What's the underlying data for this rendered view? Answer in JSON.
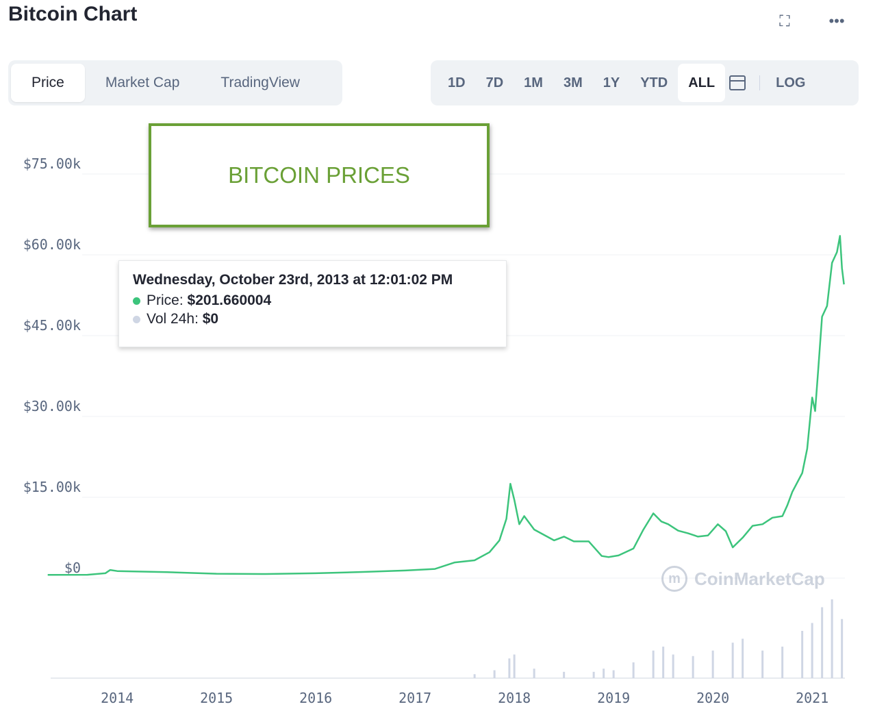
{
  "header": {
    "title": "Bitcoin Chart",
    "icons": [
      "fullscreen-icon",
      "more-icon"
    ]
  },
  "tabs": [
    {
      "label": "Price",
      "active": true
    },
    {
      "label": "Market Cap",
      "active": false
    },
    {
      "label": "TradingView",
      "active": false
    }
  ],
  "ranges": [
    {
      "label": "1D",
      "active": false
    },
    {
      "label": "7D",
      "active": false
    },
    {
      "label": "1M",
      "active": false
    },
    {
      "label": "3M",
      "active": false
    },
    {
      "label": "1Y",
      "active": false
    },
    {
      "label": "YTD",
      "active": false
    },
    {
      "label": "ALL",
      "active": true
    }
  ],
  "log_label": "LOG",
  "banner": {
    "text": "BITCOIN PRICES"
  },
  "tooltip": {
    "date": "Wednesday, October 23rd, 2013 at 12:01:02 PM",
    "price_label": "Price:",
    "price_value": "$201.660004",
    "vol_label": "Vol 24h:",
    "vol_value": "$0"
  },
  "watermark": "CoinMarketCap",
  "colors": {
    "line": "#3cc47c",
    "volume": "#cfd6e4",
    "banner": "#6aa036",
    "dot_price": "#3cc47c",
    "dot_vol": "#cfd6e4"
  },
  "chart_data": {
    "type": "line",
    "series": [
      {
        "x": [
          2013.3,
          2013.7,
          2013.88,
          2013.93,
          2014.0,
          2014.5,
          2015.0,
          2015.5,
          2016.0,
          2016.5,
          2016.9,
          2017.2,
          2017.4,
          2017.6,
          2017.75,
          2017.85,
          2017.92,
          2017.96,
          2018.0,
          2018.05,
          2018.1,
          2018.2,
          2018.3,
          2018.4,
          2018.5,
          2018.6,
          2018.75,
          2018.88,
          2018.95,
          2019.05,
          2019.2,
          2019.3,
          2019.4,
          2019.48,
          2019.55,
          2019.65,
          2019.75,
          2019.85,
          2019.95,
          2020.05,
          2020.13,
          2020.2,
          2020.3,
          2020.4,
          2020.5,
          2020.6,
          2020.7,
          2020.75,
          2020.8,
          2020.9,
          2020.95,
          2021.0,
          2021.03,
          2021.06,
          2021.1,
          2021.15,
          2021.2,
          2021.25,
          2021.28,
          2021.3,
          2021.32
        ],
        "y": [
          100,
          120,
          400,
          1000,
          800,
          600,
          300,
          250,
          400,
          650,
          900,
          1200,
          2400,
          2800,
          4300,
          6500,
          10500,
          17000,
          14000,
          9500,
          11000,
          8500,
          7500,
          6500,
          7200,
          6300,
          6300,
          3600,
          3400,
          3700,
          5000,
          8500,
          11500,
          10000,
          9500,
          8300,
          7800,
          7200,
          7400,
          9500,
          8200,
          5200,
          7000,
          9200,
          9500,
          10700,
          11000,
          13000,
          15500,
          19000,
          23500,
          33000,
          30500,
          38000,
          48000,
          50000,
          58000,
          60000,
          63000,
          57000,
          54000
        ]
      }
    ],
    "yaxis": {
      "ticks": [
        "$0",
        "$15.00k",
        "$30.00k",
        "$45.00k",
        "$60.00k",
        "$75.00k"
      ],
      "values": [
        0,
        15000,
        30000,
        45000,
        60000,
        75000
      ],
      "range": [
        0,
        75000
      ]
    },
    "xaxis": {
      "ticks": [
        "2014",
        "2015",
        "2016",
        "2017",
        "2018",
        "2019",
        "2020",
        "2021"
      ],
      "values": [
        2014,
        2015,
        2016,
        2017,
        2018,
        2019,
        2020,
        2021
      ],
      "range": [
        2013.33,
        2021.33
      ]
    },
    "volume": {
      "x": [
        2017.6,
        2017.8,
        2017.95,
        2018.0,
        2018.2,
        2018.5,
        2018.8,
        2018.9,
        2019.0,
        2019.2,
        2019.4,
        2019.5,
        2019.6,
        2019.8,
        2020.0,
        2020.2,
        2020.3,
        2020.5,
        2020.7,
        2020.9,
        2021.0,
        2021.1,
        2021.2,
        2021.3
      ],
      "y": [
        0.05,
        0.1,
        0.25,
        0.3,
        0.12,
        0.08,
        0.08,
        0.12,
        0.1,
        0.2,
        0.35,
        0.4,
        0.3,
        0.28,
        0.35,
        0.45,
        0.5,
        0.35,
        0.4,
        0.6,
        0.7,
        0.9,
        1.0,
        0.75
      ]
    },
    "grid": true
  }
}
